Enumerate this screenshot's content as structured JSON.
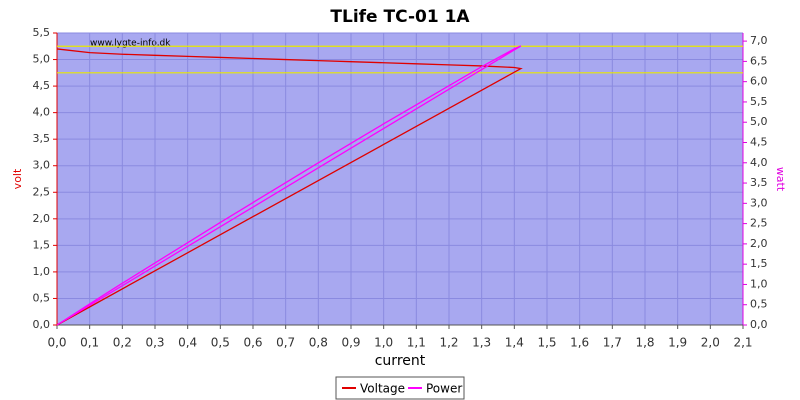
{
  "chart_data": {
    "type": "line",
    "title": "TLife TC-01 1A",
    "watermark": "www.lygte-info.dk",
    "x_label": "current",
    "y_label": "volt",
    "y2_label": "watt",
    "x": [
      0,
      0.1,
      0.2,
      0.3,
      0.4,
      0.5,
      0.6,
      0.7,
      0.8,
      0.9,
      1.0,
      1.1,
      1.2,
      1.3,
      1.4,
      1.42,
      0
    ],
    "series": [
      {
        "name": "Voltage",
        "color": "#e00000",
        "axis": "y",
        "values": [
          5.2,
          5.13,
          5.1,
          5.08,
          5.06,
          5.04,
          5.02,
          5.0,
          4.98,
          4.96,
          4.94,
          4.92,
          4.9,
          4.88,
          4.85,
          4.83,
          0
        ]
      },
      {
        "name": "Power",
        "color": "#ff00ff",
        "axis": "y2",
        "values": [
          0,
          0.52,
          1.03,
          1.53,
          2.03,
          2.53,
          3.02,
          3.51,
          4.0,
          4.48,
          4.96,
          5.43,
          5.9,
          6.37,
          6.81,
          6.88,
          0
        ]
      }
    ],
    "reference_lines": [
      5.25,
      4.75
    ],
    "reference_color": "#e8e800",
    "xlim": [
      0,
      2.1
    ],
    "ylim": [
      0,
      5.5
    ],
    "y2lim": [
      0,
      7.2
    ],
    "xticks": [
      {
        "value": 0,
        "label": "0,0"
      },
      {
        "value": 0.1,
        "label": "0,1"
      },
      {
        "value": 0.2,
        "label": "0,2"
      },
      {
        "value": 0.3,
        "label": "0,3"
      },
      {
        "value": 0.4,
        "label": "0,4"
      },
      {
        "value": 0.5,
        "label": "0,5"
      },
      {
        "value": 0.6,
        "label": "0,6"
      },
      {
        "value": 0.7,
        "label": "0,7"
      },
      {
        "value": 0.8,
        "label": "0,8"
      },
      {
        "value": 0.9,
        "label": "0,9"
      },
      {
        "value": 1.0,
        "label": "1,0"
      },
      {
        "value": 1.1,
        "label": "1,1"
      },
      {
        "value": 1.2,
        "label": "1,2"
      },
      {
        "value": 1.3,
        "label": "1,3"
      },
      {
        "value": 1.4,
        "label": "1,4"
      },
      {
        "value": 1.5,
        "label": "1,5"
      },
      {
        "value": 1.6,
        "label": "1,6"
      },
      {
        "value": 1.7,
        "label": "1,7"
      },
      {
        "value": 1.8,
        "label": "1,8"
      },
      {
        "value": 1.9,
        "label": "1,9"
      },
      {
        "value": 2.0,
        "label": "2,0"
      },
      {
        "value": 2.1,
        "label": "2,1"
      }
    ],
    "yticks": [
      {
        "value": 0,
        "label": "0,0"
      },
      {
        "value": 0.5,
        "label": "0,5"
      },
      {
        "value": 1.0,
        "label": "1,0"
      },
      {
        "value": 1.5,
        "label": "1,5"
      },
      {
        "value": 2.0,
        "label": "2,0"
      },
      {
        "value": 2.5,
        "label": "2,5"
      },
      {
        "value": 3.0,
        "label": "3,0"
      },
      {
        "value": 3.5,
        "label": "3,5"
      },
      {
        "value": 4.0,
        "label": "4,0"
      },
      {
        "value": 4.5,
        "label": "4,5"
      },
      {
        "value": 5.0,
        "label": "5,0"
      },
      {
        "value": 5.5,
        "label": "5,5"
      }
    ],
    "y2ticks": [
      {
        "value": 0,
        "label": "0,0"
      },
      {
        "value": 0.5,
        "label": "0,5"
      },
      {
        "value": 1.0,
        "label": "1,0"
      },
      {
        "value": 1.5,
        "label": "1,5"
      },
      {
        "value": 2.0,
        "label": "2,0"
      },
      {
        "value": 2.5,
        "label": "2,5"
      },
      {
        "value": 3.0,
        "label": "3,0"
      },
      {
        "value": 3.5,
        "label": "3,5"
      },
      {
        "value": 4.0,
        "label": "4,0"
      },
      {
        "value": 4.5,
        "label": "4,5"
      },
      {
        "value": 5.0,
        "label": "5,0"
      },
      {
        "value": 5.5,
        "label": "5,5"
      },
      {
        "value": 6.0,
        "label": "6,0"
      },
      {
        "value": 6.5,
        "label": "6,5"
      },
      {
        "value": 7.0,
        "label": "7,0"
      }
    ],
    "grid": true
  }
}
